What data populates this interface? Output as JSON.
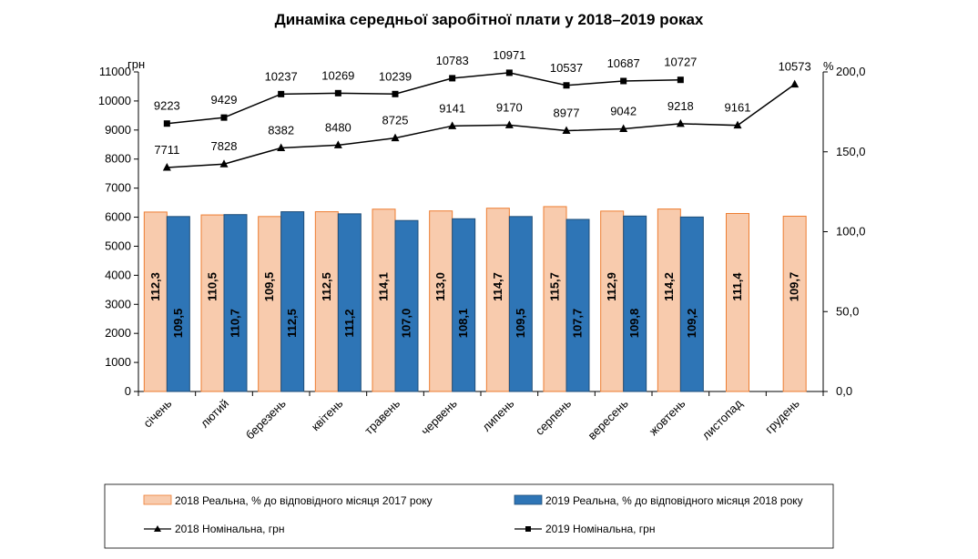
{
  "chart_data": {
    "type": "bar",
    "title": "Динаміка середньої заробітної плати у 2018–2019 роках",
    "left_axis_unit": "грн",
    "right_axis_unit": "%",
    "left_ylim": [
      0,
      11000
    ],
    "left_ticks": [
      0,
      1000,
      2000,
      3000,
      4000,
      5000,
      6000,
      7000,
      8000,
      9000,
      10000,
      11000
    ],
    "right_ylim": [
      0,
      200
    ],
    "right_ticks": [
      "0,0",
      "50,0",
      "100,0",
      "150,0",
      "200,0"
    ],
    "right_tick_values": [
      0,
      50,
      100,
      150,
      200
    ],
    "categories": [
      "січень",
      "лютий",
      "березень",
      "квітень",
      "травень",
      "червень",
      "липень",
      "серпень",
      "вересень",
      "жовтень",
      "листопад",
      "грудень"
    ],
    "series": [
      {
        "name": "2018 Реальна, % до відповідного місяця 2017 року",
        "kind": "bar",
        "axis": "right",
        "color": "#F8CBAD",
        "stroke": "#ED7D31",
        "values": [
          112.3,
          110.5,
          109.5,
          112.5,
          114.1,
          113.0,
          114.7,
          115.7,
          112.9,
          114.2,
          111.4,
          109.7
        ],
        "labels": [
          "112,3",
          "110,5",
          "109,5",
          "112,5",
          "114,1",
          "113,0",
          "114,7",
          "115,7",
          "112,9",
          "114,2",
          "111,4",
          "109,7"
        ]
      },
      {
        "name": "2019 Реальна, % до відповідного місяця 2018 року",
        "kind": "bar",
        "axis": "right",
        "color": "#2E75B6",
        "stroke": "#1F4E79",
        "values": [
          109.5,
          110.7,
          112.5,
          111.2,
          107.0,
          108.1,
          109.5,
          107.7,
          109.8,
          109.2,
          null,
          null
        ],
        "labels": [
          "109,5",
          "110,7",
          "112,5",
          "111,2",
          "107,0",
          "108,1",
          "109,5",
          "107,7",
          "109,8",
          "109,2",
          null,
          null
        ]
      },
      {
        "name": "2018 Номінальна, грн",
        "kind": "line",
        "axis": "left",
        "marker": "triangle",
        "values": [
          7711,
          7828,
          8382,
          8480,
          8725,
          9141,
          9170,
          8977,
          9042,
          9218,
          9161,
          10573
        ],
        "labels": [
          "7711",
          "7828",
          "8382",
          "8480",
          "8725",
          "9141",
          "9170",
          "8977",
          "9042",
          "9218",
          "9161",
          "10573"
        ]
      },
      {
        "name": "2019 Номінальна, грн",
        "kind": "line",
        "axis": "left",
        "marker": "square",
        "values": [
          9223,
          9429,
          10237,
          10269,
          10239,
          10783,
          10971,
          10537,
          10687,
          10727,
          null,
          null
        ],
        "labels": [
          "9223",
          "9429",
          "10237",
          "10269",
          "10239",
          "10783",
          "10971",
          "10537",
          "10687",
          "10727",
          null,
          null
        ]
      }
    ]
  }
}
